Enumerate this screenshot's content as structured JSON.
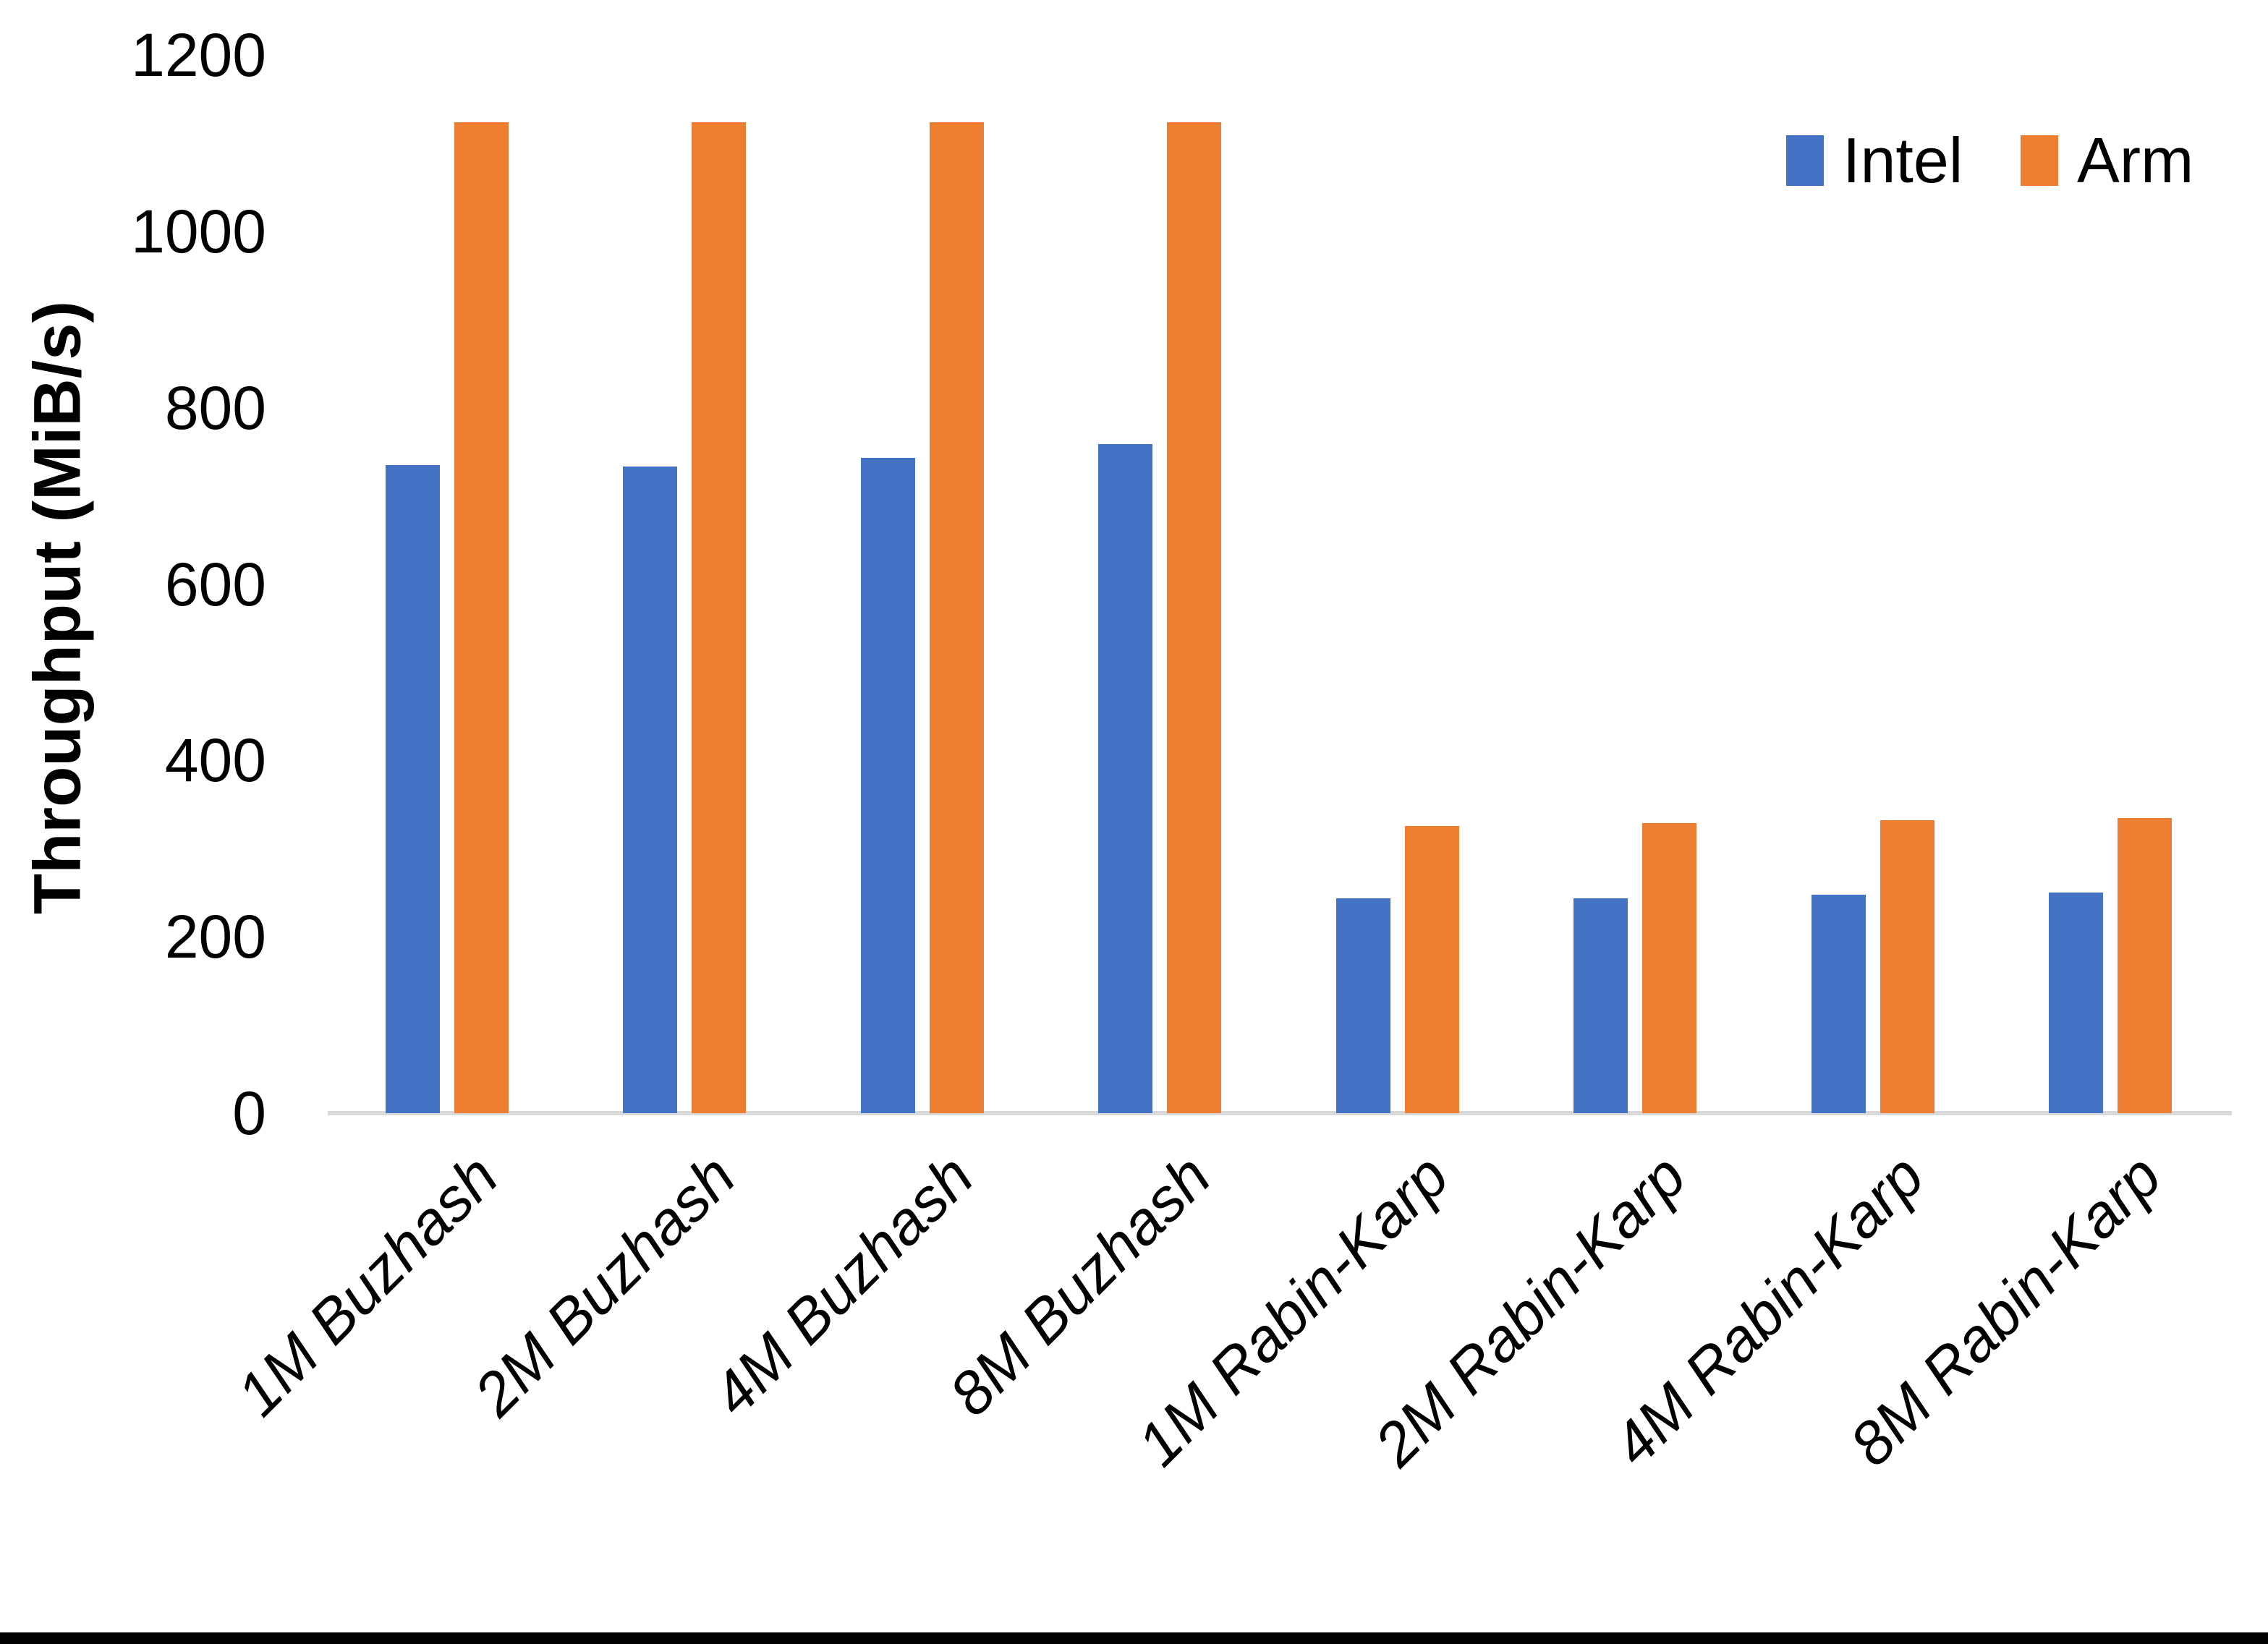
{
  "chart_data": {
    "type": "bar",
    "title": "",
    "xlabel": "",
    "ylabel": "Throughput (MiB/s)",
    "categories": [
      "1M Buzhash",
      "2M Buzhash",
      "4M Buzhash",
      "8M Buzhash",
      "1M Rabin-Karp",
      "2M Rabin-Karp",
      "4M Rabin-Karp",
      "8M Rabin-Karp"
    ],
    "series": [
      {
        "name": "Intel",
        "color": "#4472c4",
        "values": [
          735,
          733,
          743,
          759,
          244,
          244,
          248,
          250
        ]
      },
      {
        "name": "Arm",
        "color": "#ed7d31",
        "values": [
          1124,
          1124,
          1124,
          1124,
          326,
          329,
          332,
          335
        ]
      }
    ],
    "ylim": [
      0,
      1200
    ],
    "yticks": [
      0,
      200,
      400,
      600,
      800,
      1000,
      1200
    ],
    "grid": false,
    "legend_position": "top-right",
    "axis_line_color": "#d9d9d9",
    "text_color": "#000000",
    "bottom_border_color": "#000000"
  }
}
